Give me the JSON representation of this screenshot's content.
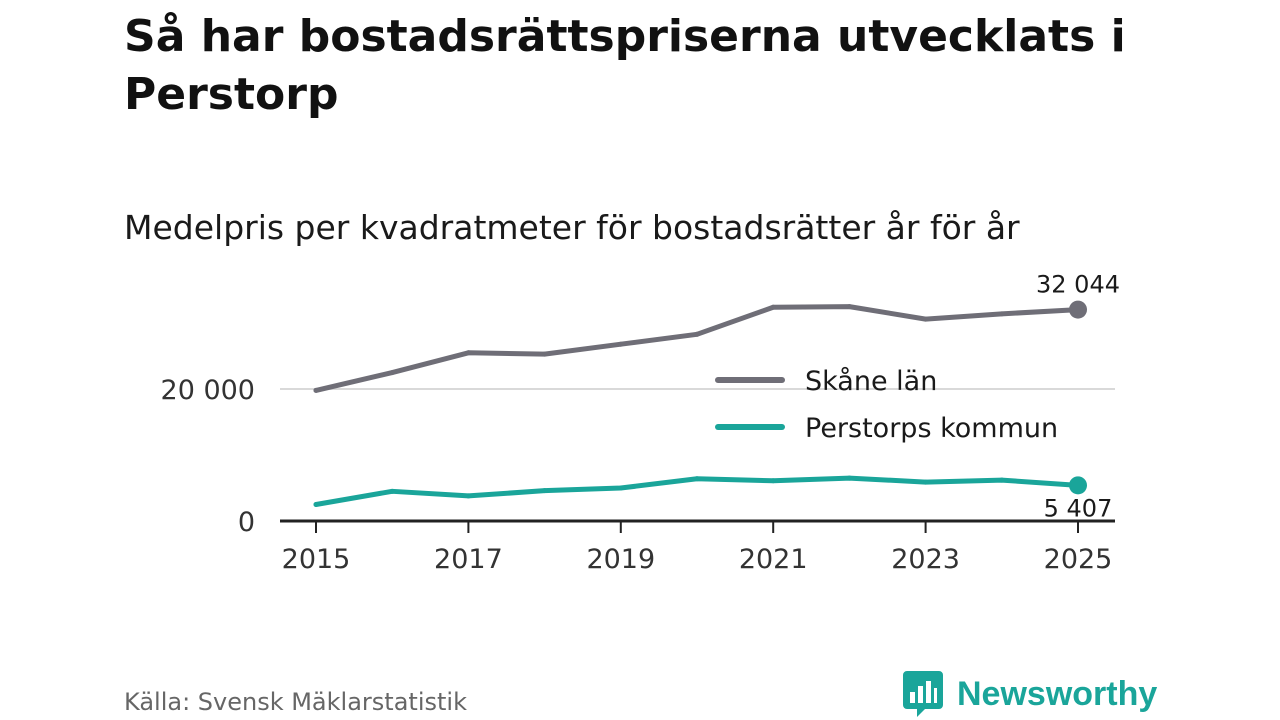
{
  "title": "Så har bostadsrättspriserna utvecklats i Perstorp",
  "subtitle": "Medelpris per kvadratmeter för bostadsrätter år för år",
  "source": "Källa: Svensk Mäklarstatistik",
  "brand": "Newsworthy",
  "colors": {
    "skane": "#6f6e77",
    "perstorp": "#1aa59a",
    "grid": "#d9d9d9",
    "axis": "#222222",
    "brand": "#1aa59a"
  },
  "chart_data": {
    "type": "line",
    "title": "Så har bostadsrättspriserna utvecklats i Perstorp",
    "subtitle": "Medelpris per kvadratmeter för bostadsrätter år för år",
    "xlabel": "",
    "ylabel": "",
    "x": [
      2015,
      2016,
      2017,
      2018,
      2019,
      2020,
      2021,
      2022,
      2023,
      2024,
      2025
    ],
    "xlim": [
      2015,
      2025.3
    ],
    "ylim": [
      0,
      33500
    ],
    "x_ticks": [
      2015,
      2017,
      2019,
      2021,
      2023,
      2025
    ],
    "x_tick_labels": [
      "2015",
      "2017",
      "2019",
      "2021",
      "2023",
      "2025"
    ],
    "y_ticks": [
      0,
      20000
    ],
    "y_tick_labels": [
      "0",
      "20 000"
    ],
    "grid": true,
    "legend_position": "right",
    "series": [
      {
        "name": "Skåne län",
        "color_key": "skane",
        "values": [
          19800,
          22500,
          25500,
          25300,
          26800,
          28300,
          32400,
          32500,
          30600,
          31400,
          32044
        ],
        "end_label": "32 044"
      },
      {
        "name": "Perstorps kommun",
        "color_key": "perstorp",
        "values": [
          2500,
          4500,
          3800,
          4600,
          5000,
          6400,
          6100,
          6500,
          5900,
          6200,
          5407
        ],
        "end_label": "5 407"
      }
    ]
  }
}
